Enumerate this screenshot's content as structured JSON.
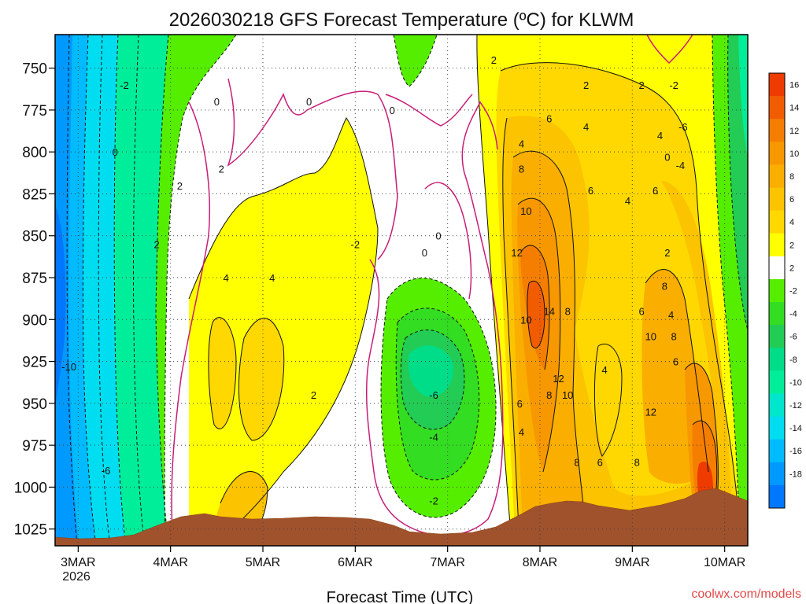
{
  "chart_data": {
    "type": "heatmap",
    "title": "2026030218 GFS Forecast Temperature (ºC) for KLWM",
    "xlabel": "Forecast Time (UTC)",
    "ylabel": "",
    "credit": "coolwx.com/models",
    "x_ticks": [
      "3MAR",
      "4MAR",
      "5MAR",
      "6MAR",
      "7MAR",
      "8MAR",
      "9MAR",
      "10MAR"
    ],
    "x_year": "2026",
    "y_ticks": [
      750,
      775,
      800,
      825,
      850,
      875,
      900,
      925,
      950,
      975,
      1000,
      1025
    ],
    "y_tick_labels": [
      "750",
      "775",
      "800",
      "825",
      "850",
      "875",
      "900",
      "925",
      "950",
      "975",
      "1000",
      "1025"
    ],
    "ylim": [
      730,
      1035
    ],
    "xlim_days": [
      2.75,
      10.25
    ],
    "colorbar_levels": [
      "16",
      "14",
      "12",
      "10",
      "8",
      "6",
      "4",
      "2",
      "2",
      "-2",
      "-4",
      "-6",
      "-8",
      "-10",
      "-12",
      "-14",
      "-16",
      "-18"
    ],
    "colorbar_colors": [
      "#ee3b00",
      "#f25c00",
      "#f57e00",
      "#f89800",
      "#faae00",
      "#fbc300",
      "#fed800",
      "#ffff00",
      "#ffffff",
      "#55ee00",
      "#33dd22",
      "#22cc55",
      "#00dd88",
      "#00ee99",
      "#00e6cc",
      "#00ddf0",
      "#00bbff",
      "#0099ff",
      "#0077ff"
    ],
    "ground_color": "#a0522d",
    "contour_labels": [
      {
        "text": "-2",
        "day": 3.5,
        "p": 760
      },
      {
        "text": "0",
        "day": 3.4,
        "p": 800
      },
      {
        "text": "0",
        "day": 4.5,
        "p": 770
      },
      {
        "text": "0",
        "day": 5.5,
        "p": 770
      },
      {
        "text": "0",
        "day": 6.4,
        "p": 775
      },
      {
        "text": "2",
        "day": 4.1,
        "p": 820
      },
      {
        "text": "2",
        "day": 4.55,
        "p": 810
      },
      {
        "text": "2",
        "day": 3.85,
        "p": 855
      },
      {
        "text": "4",
        "day": 4.6,
        "p": 875
      },
      {
        "text": "4",
        "day": 5.1,
        "p": 875
      },
      {
        "text": "2",
        "day": 5.55,
        "p": 945
      },
      {
        "text": "-2",
        "day": 6.0,
        "p": 855
      },
      {
        "text": "0",
        "day": 6.75,
        "p": 860
      },
      {
        "text": "0",
        "day": 6.9,
        "p": 850
      },
      {
        "text": "-6",
        "day": 6.85,
        "p": 945
      },
      {
        "text": "-4",
        "day": 6.85,
        "p": 970
      },
      {
        "text": "-2",
        "day": 6.85,
        "p": 1008
      },
      {
        "text": "-10",
        "day": 2.9,
        "p": 928
      },
      {
        "text": "-6",
        "day": 3.3,
        "p": 990
      },
      {
        "text": "2",
        "day": 7.5,
        "p": 745
      },
      {
        "text": "2",
        "day": 8.5,
        "p": 760
      },
      {
        "text": "2",
        "day": 9.1,
        "p": 760
      },
      {
        "text": "-2",
        "day": 9.45,
        "p": 760
      },
      {
        "text": "6",
        "day": 8.1,
        "p": 780
      },
      {
        "text": "4",
        "day": 8.5,
        "p": 785
      },
      {
        "text": "4",
        "day": 7.8,
        "p": 795
      },
      {
        "text": "4",
        "day": 9.3,
        "p": 790
      },
      {
        "text": "-6",
        "day": 9.55,
        "p": 785
      },
      {
        "text": "8",
        "day": 7.8,
        "p": 810
      },
      {
        "text": "6",
        "day": 8.55,
        "p": 823
      },
      {
        "text": "4",
        "day": 8.95,
        "p": 829
      },
      {
        "text": "6",
        "day": 9.25,
        "p": 823
      },
      {
        "text": "0",
        "day": 9.38,
        "p": 803
      },
      {
        "text": "-4",
        "day": 9.52,
        "p": 808
      },
      {
        "text": "10",
        "day": 7.85,
        "p": 835
      },
      {
        "text": "12",
        "day": 7.75,
        "p": 860
      },
      {
        "text": "2",
        "day": 9.38,
        "p": 860
      },
      {
        "text": "8",
        "day": 9.35,
        "p": 880
      },
      {
        "text": "14",
        "day": 8.1,
        "p": 895
      },
      {
        "text": "8",
        "day": 8.3,
        "p": 895
      },
      {
        "text": "10",
        "day": 7.85,
        "p": 900
      },
      {
        "text": "6",
        "day": 9.1,
        "p": 895
      },
      {
        "text": "4",
        "day": 9.42,
        "p": 897
      },
      {
        "text": "8",
        "day": 9.45,
        "p": 910
      },
      {
        "text": "10",
        "day": 9.2,
        "p": 910
      },
      {
        "text": "6",
        "day": 9.47,
        "p": 925
      },
      {
        "text": "12",
        "day": 8.2,
        "p": 935
      },
      {
        "text": "4",
        "day": 8.7,
        "p": 930
      },
      {
        "text": "10",
        "day": 8.3,
        "p": 945
      },
      {
        "text": "8",
        "day": 8.1,
        "p": 945
      },
      {
        "text": "6",
        "day": 7.78,
        "p": 950
      },
      {
        "text": "4",
        "day": 7.8,
        "p": 967
      },
      {
        "text": "12",
        "day": 9.2,
        "p": 955
      },
      {
        "text": "8",
        "day": 8.4,
        "p": 985
      },
      {
        "text": "6",
        "day": 8.65,
        "p": 985
      },
      {
        "text": "8",
        "day": 9.05,
        "p": 985
      }
    ]
  }
}
